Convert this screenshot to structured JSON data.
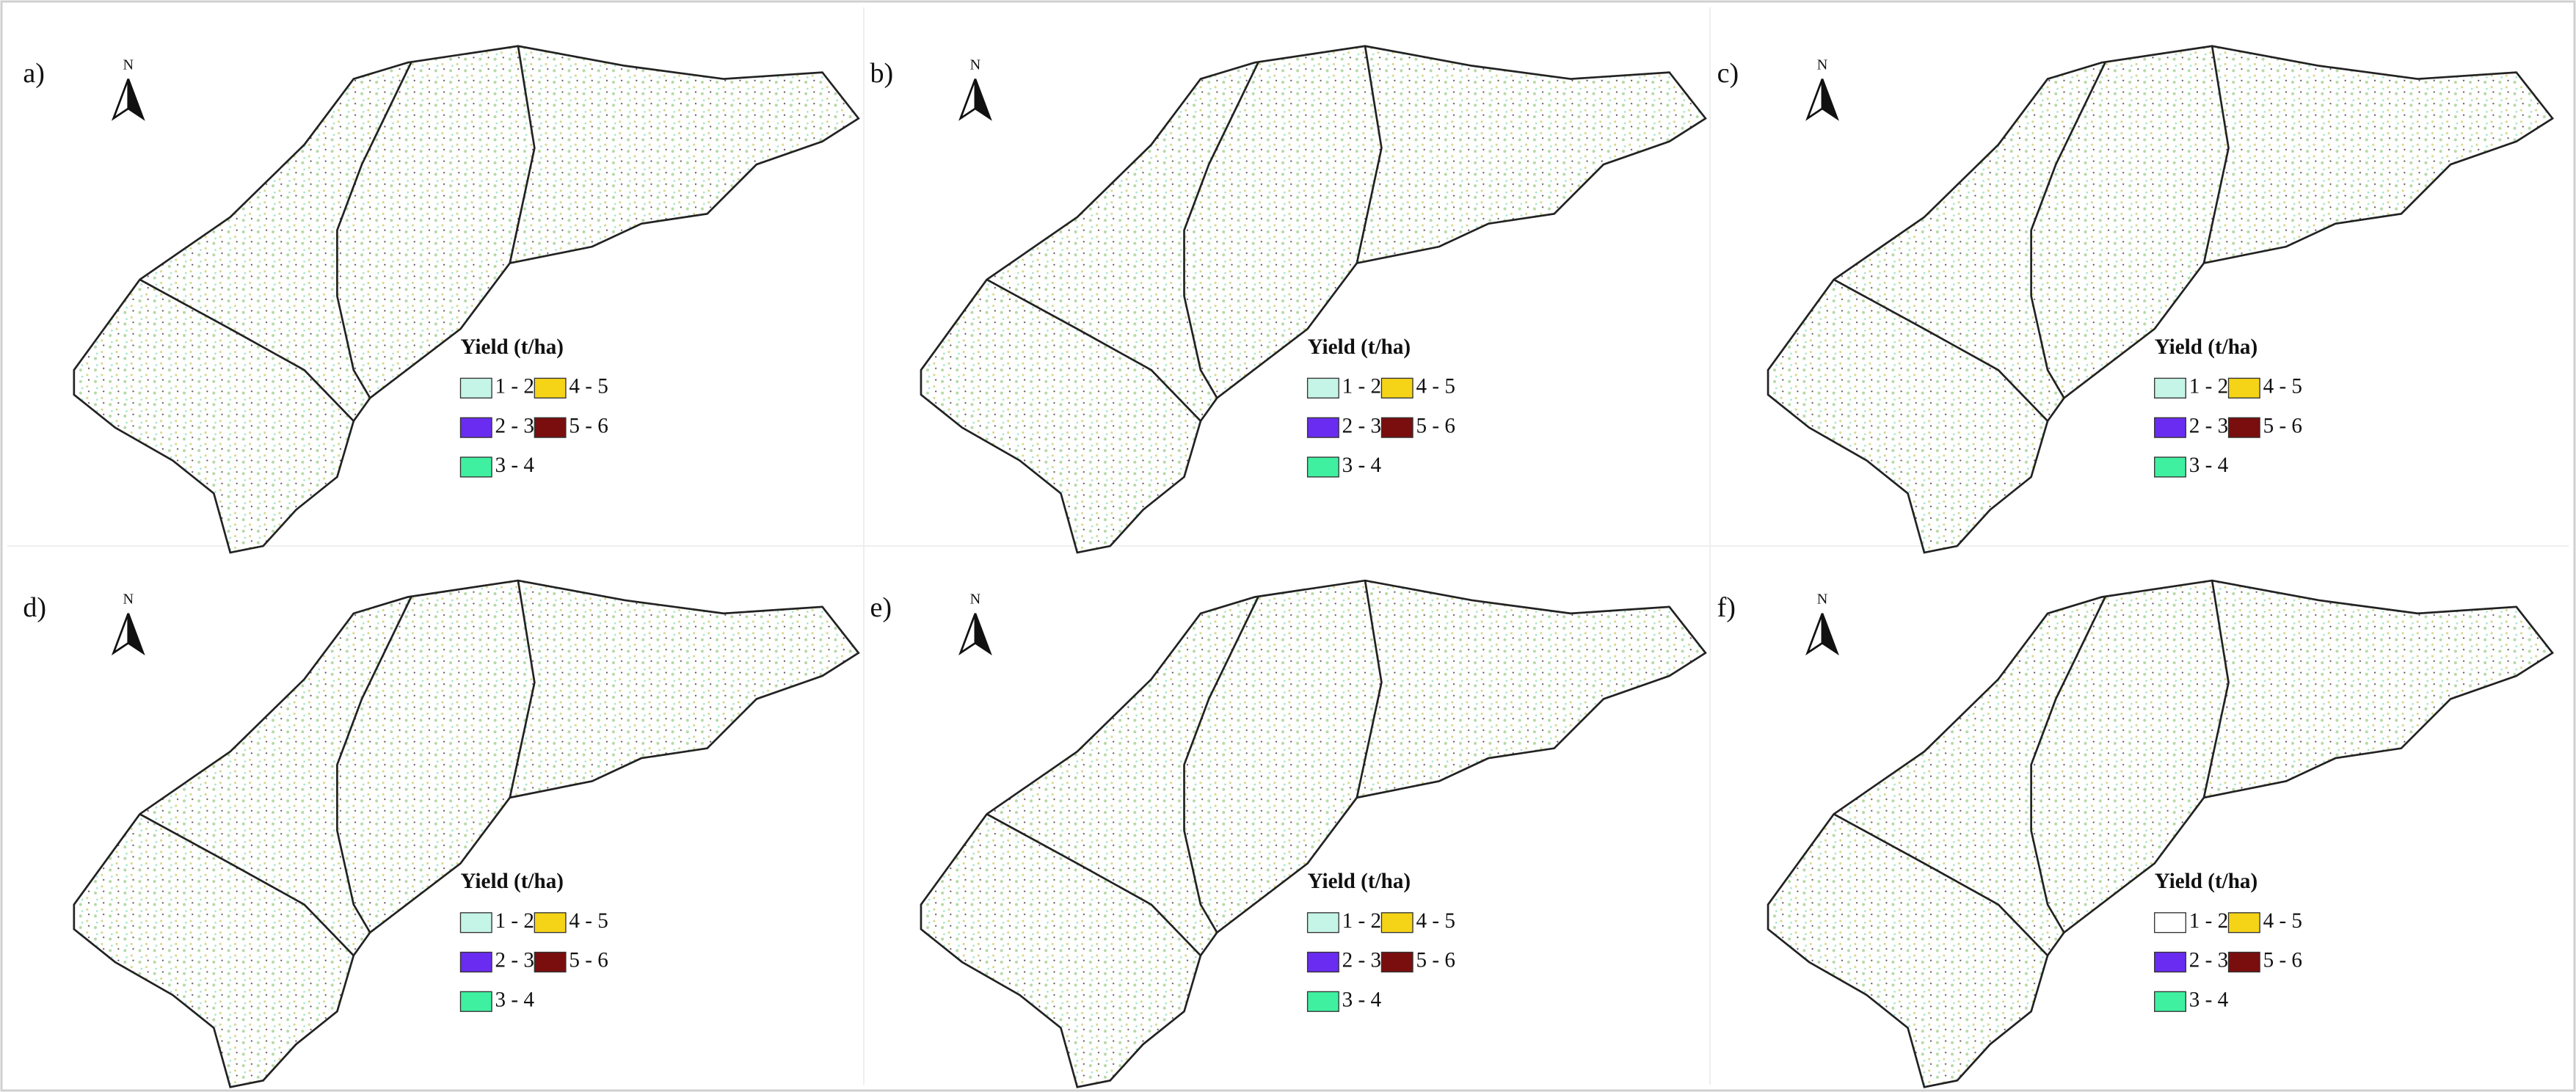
{
  "panels": [
    {
      "label": "a)",
      "north": "N",
      "legend": {
        "title": "Yield (t/ha)",
        "items": [
          {
            "label": "1 - 2",
            "color": "#c4f5e6"
          },
          {
            "label": "2 - 3",
            "color": "#6a2cf0"
          },
          {
            "label": "3 - 4",
            "color": "#3ff0a0"
          },
          {
            "label": "4 - 5",
            "color": "#f5d418"
          },
          {
            "label": "5 - 6",
            "color": "#7a0d0d"
          }
        ]
      }
    },
    {
      "label": "b)",
      "north": "N",
      "legend": {
        "title": "Yield (t/ha)",
        "items": [
          {
            "label": "1 - 2",
            "color": "#c4f5e6"
          },
          {
            "label": "2 - 3",
            "color": "#6a2cf0"
          },
          {
            "label": "3 - 4",
            "color": "#3ff0a0"
          },
          {
            "label": "4 - 5",
            "color": "#f5d418"
          },
          {
            "label": "5 - 6",
            "color": "#7a0d0d"
          }
        ]
      }
    },
    {
      "label": "c)",
      "north": "N",
      "legend": {
        "title": "Yield (t/ha)",
        "items": [
          {
            "label": "1 - 2",
            "color": "#c4f5e6"
          },
          {
            "label": "2 - 3",
            "color": "#6a2cf0"
          },
          {
            "label": "3 - 4",
            "color": "#3ff0a0"
          },
          {
            "label": "4 - 5",
            "color": "#f5d418"
          },
          {
            "label": "5 - 6",
            "color": "#7a0d0d"
          }
        ]
      }
    },
    {
      "label": "d)",
      "north": "N",
      "legend": {
        "title": "Yield (t/ha)",
        "items": [
          {
            "label": "1 - 2",
            "color": "#c4f5e6"
          },
          {
            "label": "2 - 3",
            "color": "#6a2cf0"
          },
          {
            "label": "3 - 4",
            "color": "#3ff0a0"
          },
          {
            "label": "4 - 5",
            "color": "#f5d418"
          },
          {
            "label": "5 - 6",
            "color": "#7a0d0d"
          }
        ]
      }
    },
    {
      "label": "e)",
      "north": "N",
      "legend": {
        "title": "Yield (t/ha)",
        "items": [
          {
            "label": "1 - 2",
            "color": "#c4f5e6"
          },
          {
            "label": "2 - 3",
            "color": "#6a2cf0"
          },
          {
            "label": "3 - 4",
            "color": "#3ff0a0"
          },
          {
            "label": "4 - 5",
            "color": "#f5d418"
          },
          {
            "label": "5 - 6",
            "color": "#7a0d0d"
          }
        ]
      }
    },
    {
      "label": "f)",
      "north": "N",
      "legend": {
        "title": "Yield (t/ha)",
        "items": [
          {
            "label": "1 - 2",
            "color": "#ffffff"
          },
          {
            "label": "2 - 3",
            "color": "#6a2cf0"
          },
          {
            "label": "3 - 4",
            "color": "#3ff0a0"
          },
          {
            "label": "4 - 5",
            "color": "#f5d418"
          },
          {
            "label": "5 - 6",
            "color": "#7a0d0d"
          }
        ]
      }
    }
  ]
}
